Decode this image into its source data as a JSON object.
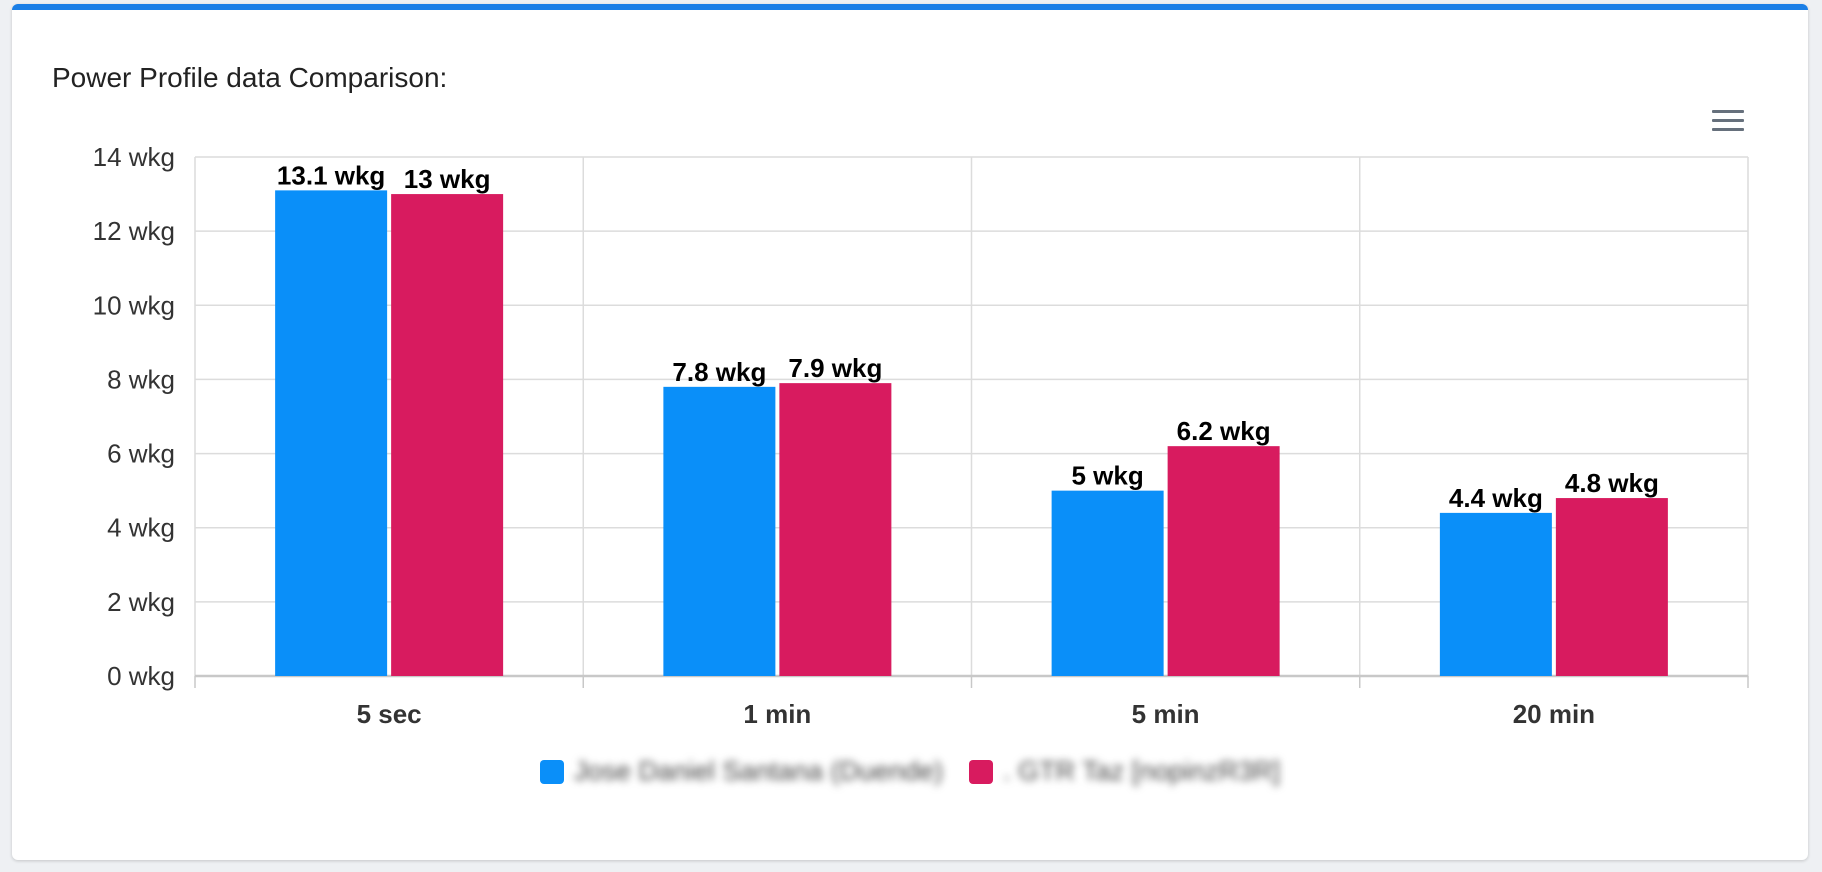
{
  "card": {
    "title": "Power Profile data Comparison:"
  },
  "menu": {
    "icon": "hamburger-menu-icon"
  },
  "chart_data": {
    "type": "bar",
    "categories": [
      "5 sec",
      "1 min",
      "5 min",
      "20 min"
    ],
    "series": [
      {
        "name": "Jose Daniel Santana (Duende)",
        "color": "#0a8ff9",
        "values": [
          13.1,
          7.8,
          5,
          4.4
        ],
        "labels": [
          "13.1 wkg",
          "7.8 wkg",
          "5 wkg",
          "4.4 wkg"
        ]
      },
      {
        "name": ". GTR Taz [nopinzR3R]",
        "color": "#d81b5f",
        "values": [
          13,
          7.9,
          6.2,
          4.8
        ],
        "labels": [
          "13 wkg",
          "7.9 wkg",
          "6.2 wkg",
          "4.8 wkg"
        ]
      }
    ],
    "ylim": [
      0,
      14
    ],
    "yticks": [
      0,
      2,
      4,
      6,
      8,
      10,
      12,
      14
    ],
    "ytick_labels": [
      "0 wkg",
      "2 wkg",
      "4 wkg",
      "6 wkg",
      "8 wkg",
      "10 wkg",
      "12 wkg",
      "14 wkg"
    ],
    "grid": true,
    "legend_position": "bottom-center"
  }
}
